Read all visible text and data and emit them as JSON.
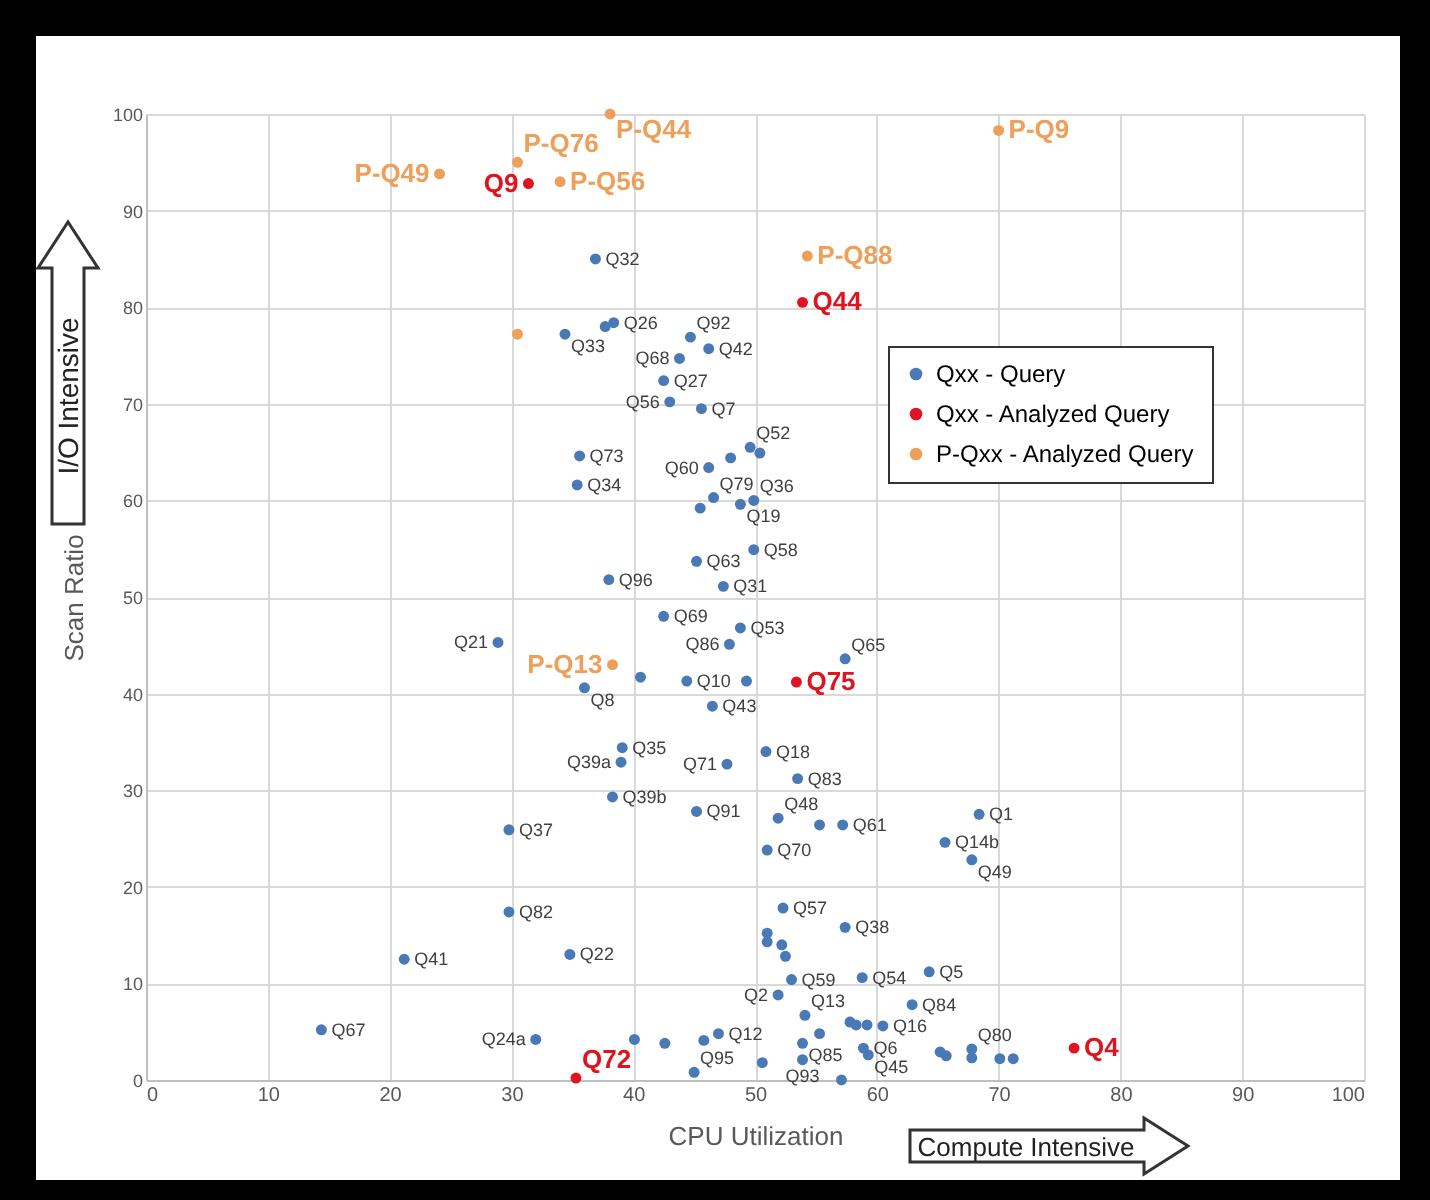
{
  "chart_data": {
    "type": "scatter",
    "xlabel": "CPU Utilization",
    "ylabel": "Scan Ratio",
    "annotations": [
      "I/O Intensive",
      "Compute Intensive"
    ],
    "xlim": [
      0,
      100
    ],
    "xticks": [
      0,
      10,
      20,
      30,
      40,
      50,
      60,
      70,
      80,
      90,
      100
    ],
    "ylim": [
      0,
      100
    ],
    "yticks": [
      0,
      10,
      20,
      30,
      40,
      50,
      60,
      70,
      80,
      90,
      100
    ],
    "grid": true,
    "legend": "right",
    "marker": "circle",
    "series": [
      {
        "name": "Qxx - Query",
        "color": "#4a7ab5",
        "x": [
          36.9,
          34.4,
          37.7,
          38.4,
          44.7,
          46.2,
          43.8,
          42.5,
          43.0,
          45.6,
          35.6,
          35.4,
          46.2,
          48.0,
          49.6,
          50.4,
          46.6,
          45.5,
          48.8,
          49.9,
          45.2,
          49.9,
          38.0,
          47.4,
          42.5,
          48.8,
          47.9,
          28.9,
          36.0,
          40.6,
          44.4,
          49.3,
          46.5,
          39.1,
          39.0,
          47.7,
          38.3,
          45.2,
          29.8,
          29.8,
          21.2,
          34.8,
          14.4,
          32.0,
          40.1,
          42.6,
          45.8,
          47.0,
          45.0,
          50.6,
          57.4,
          50.9,
          53.5,
          51.9,
          55.3,
          57.2,
          68.4,
          65.6,
          67.8,
          51.0,
          52.3,
          57.4,
          51.0,
          51.0,
          52.2,
          52.5,
          53.0,
          58.8,
          64.3,
          51.9,
          62.9,
          54.1,
          57.8,
          58.3,
          59.2,
          60.5,
          55.3,
          53.9,
          58.9,
          59.3,
          65.2,
          65.7,
          67.8,
          67.8,
          70.1,
          71.2,
          53.9,
          57.1
        ],
        "values": [
          85.0,
          77.2,
          78.0,
          78.4,
          76.9,
          75.7,
          74.7,
          72.4,
          70.2,
          69.5,
          64.6,
          61.6,
          63.4,
          64.4,
          65.5,
          64.9,
          60.3,
          59.2,
          59.6,
          60.0,
          53.7,
          54.9,
          51.8,
          51.1,
          48.0,
          46.8,
          45.1,
          45.3,
          40.6,
          41.7,
          41.3,
          41.3,
          38.7,
          34.4,
          32.9,
          32.7,
          29.3,
          27.8,
          25.9,
          17.4,
          12.5,
          13.0,
          5.2,
          4.2,
          4.2,
          3.8,
          4.1,
          4.8,
          0.8,
          1.8,
          43.6,
          34.0,
          31.2,
          27.1,
          26.4,
          26.4,
          27.5,
          24.6,
          22.8,
          23.8,
          17.8,
          15.8,
          15.2,
          14.3,
          14.0,
          12.8,
          10.4,
          10.6,
          11.2,
          8.8,
          7.8,
          6.7,
          6.0,
          5.7,
          5.7,
          5.6,
          4.8,
          3.8,
          3.3,
          2.6,
          2.9,
          2.5,
          3.2,
          2.3,
          2.2,
          2.2,
          2.1,
          0.0
        ],
        "value_labels": [
          "Q32",
          "Q33",
          null,
          "Q26",
          "Q92",
          "Q42",
          "Q68",
          "Q27",
          "Q56",
          "Q7",
          "Q73",
          "Q34",
          "Q60",
          null,
          "Q52",
          null,
          "Q79",
          null,
          "Q19",
          "Q36",
          "Q63",
          "Q58",
          "Q96",
          "Q31",
          "Q69",
          "Q53",
          "Q86",
          "Q21",
          "Q8",
          null,
          "Q10",
          null,
          "Q43",
          "Q35",
          "Q39a",
          "Q71",
          "Q39b",
          "Q91",
          "Q37",
          "Q82",
          "Q41",
          "Q22",
          "Q67",
          "Q24a",
          null,
          null,
          null,
          "Q12",
          "Q95",
          null,
          "Q65",
          "Q18",
          "Q83",
          "Q48",
          null,
          "Q61",
          "Q1",
          "Q14b",
          "Q49",
          "Q70",
          "Q57",
          "Q38",
          null,
          null,
          null,
          null,
          "Q59",
          "Q54",
          "Q5",
          "Q2",
          "Q84",
          "Q13",
          null,
          null,
          null,
          "Q16",
          null,
          "Q85",
          "Q6",
          "Q45",
          null,
          null,
          "Q80",
          null,
          null,
          null,
          "Q93",
          null
        ]
      },
      {
        "name": "Qxx - Analyzed Query",
        "color": "#e0141e",
        "x": [
          31.4,
          53.9,
          53.4,
          35.3,
          76.2
        ],
        "values": [
          92.8,
          80.5,
          41.2,
          0.2,
          3.3
        ],
        "value_labels": [
          "Q9",
          "Q44",
          "Q75",
          "Q72",
          "Q4"
        ]
      },
      {
        "name": "P-Qxx - Analyzed Query",
        "color": "#eda05a",
        "x": [
          38.1,
          70.0,
          30.5,
          34.0,
          24.1,
          54.3,
          30.5,
          38.3
        ],
        "values": [
          100,
          98.3,
          95.0,
          93.0,
          93.8,
          85.3,
          77.2,
          43.0
        ],
        "value_labels": [
          "P-Q44",
          "P-Q9",
          "P-Q76",
          "P-Q56",
          "P-Q49",
          "P-Q88",
          null,
          "P-Q13"
        ]
      }
    ]
  }
}
